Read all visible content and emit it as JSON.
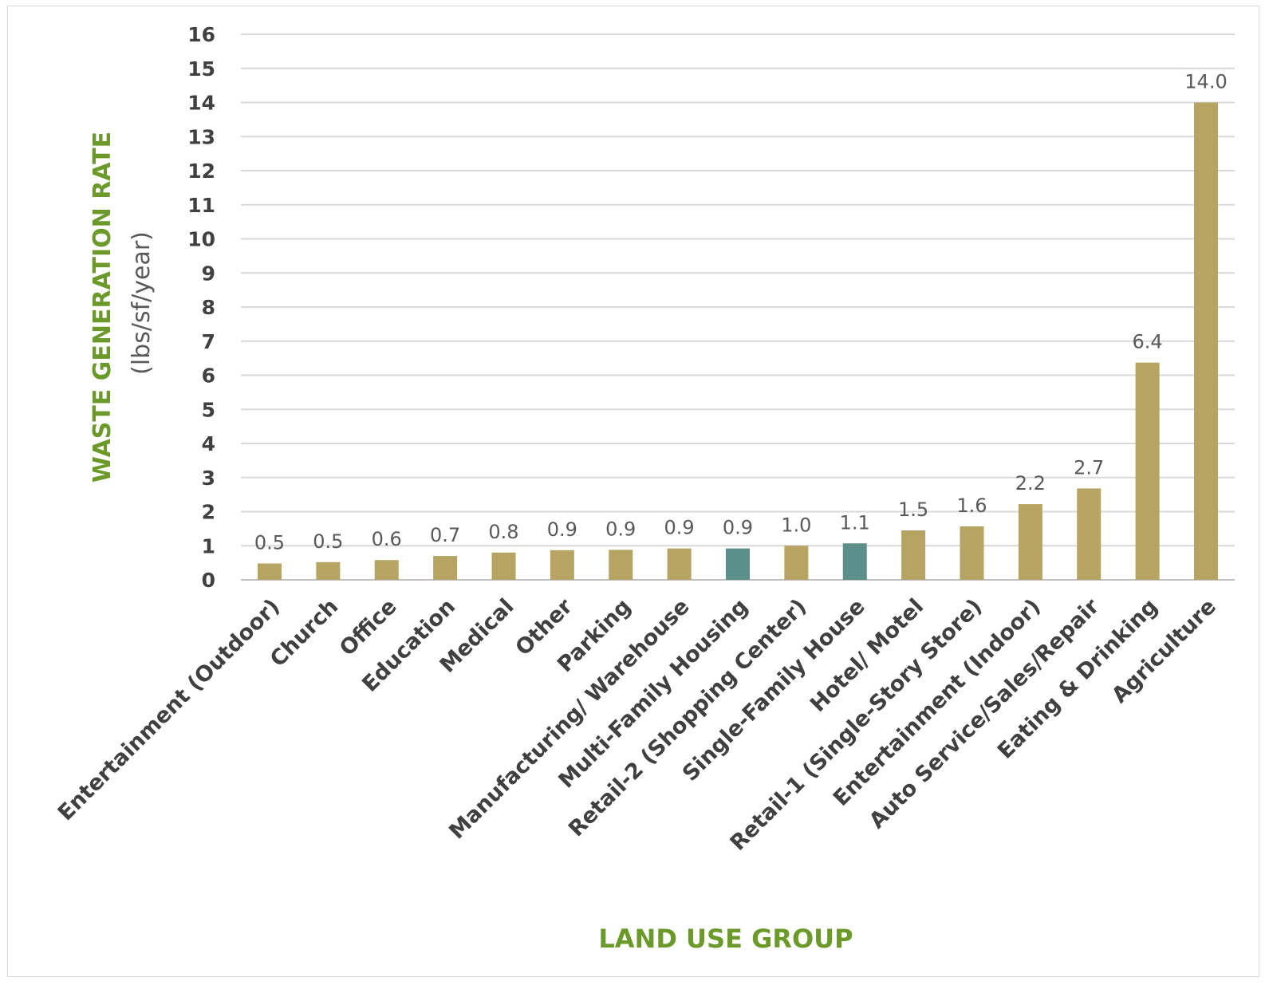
{
  "chart_data": {
    "type": "bar",
    "title": "",
    "xlabel": "LAND USE GROUP",
    "ylabel": "WASTE GENERATION RATE",
    "ylabel_unit": "(lbs/sf/year)",
    "ylim": [
      0,
      16
    ],
    "yticks": [
      0,
      1,
      2,
      3,
      4,
      5,
      6,
      7,
      8,
      9,
      10,
      11,
      12,
      13,
      14,
      15,
      16
    ],
    "grid": true,
    "legend": "none",
    "colors": {
      "default": "#b5a462",
      "highlight": "#5b8f8a"
    },
    "categories": [
      "Entertainment (Outdoor)",
      "Church",
      "Office",
      "Education",
      "Medical",
      "Other",
      "Parking",
      "Manufacturing/ Warehouse",
      "Multi-Family Housing",
      "Retail-2 (Shopping Center)",
      "Single-Family House",
      "Hotel/ Motel",
      "Retail-1 (Single-Story Store)",
      "Entertainment (Indoor)",
      "Auto Service/Sales/Repair",
      "Eating & Drinking",
      "Agriculture"
    ],
    "values": [
      0.48,
      0.52,
      0.58,
      0.7,
      0.8,
      0.87,
      0.88,
      0.92,
      0.92,
      1.0,
      1.07,
      1.45,
      1.57,
      2.22,
      2.68,
      6.37,
      14.0
    ],
    "data_labels": [
      "0.5",
      "0.5",
      "0.6",
      "0.7",
      "0.8",
      "0.9",
      "0.9",
      "0.9",
      "0.9",
      "1.0",
      "1.1",
      "1.5",
      "1.6",
      "2.2",
      "2.7",
      "6.4",
      "14.0"
    ],
    "highlight": [
      "Multi-Family Housing",
      "Single-Family House"
    ]
  }
}
